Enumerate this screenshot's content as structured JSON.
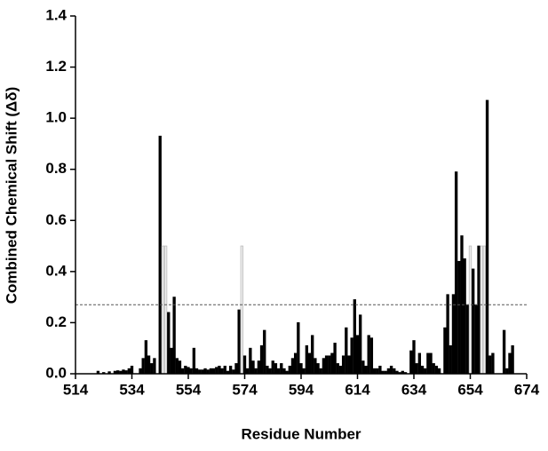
{
  "chart_data": {
    "type": "bar",
    "xlabel": "Residue Number",
    "ylabel": "Combined Chemical Shift (Δδ)",
    "x": [
      522,
      524,
      526,
      528,
      529,
      530,
      531,
      532,
      533,
      534,
      537,
      538,
      539,
      540,
      541,
      542,
      544,
      545,
      546,
      547,
      548,
      549,
      550,
      551,
      552,
      553,
      554,
      555,
      556,
      557,
      558,
      559,
      560,
      561,
      562,
      563,
      564,
      565,
      566,
      567,
      568,
      569,
      570,
      571,
      572,
      573,
      574,
      575,
      576,
      577,
      578,
      579,
      580,
      581,
      582,
      583,
      584,
      585,
      586,
      587,
      588,
      589,
      590,
      591,
      592,
      593,
      594,
      595,
      596,
      597,
      598,
      599,
      600,
      601,
      602,
      603,
      604,
      605,
      606,
      607,
      608,
      609,
      610,
      611,
      612,
      613,
      614,
      615,
      616,
      617,
      618,
      619,
      620,
      621,
      622,
      623,
      624,
      625,
      626,
      627,
      628,
      629,
      630,
      631,
      633,
      634,
      635,
      636,
      637,
      638,
      639,
      640,
      641,
      642,
      643,
      645,
      646,
      647,
      648,
      649,
      650,
      651,
      652,
      653,
      654,
      655,
      656,
      657,
      658,
      659,
      660,
      661,
      662,
      666,
      667,
      668,
      669
    ],
    "values": [
      0.01,
      0.005,
      0.008,
      0.01,
      0.012,
      0.01,
      0.015,
      0.012,
      0.02,
      0.03,
      0.02,
      0.06,
      0.13,
      0.07,
      0.04,
      0.06,
      0.93,
      0.5,
      0.5,
      0.24,
      0.1,
      0.3,
      0.06,
      0.05,
      0.02,
      0.03,
      0.025,
      0.02,
      0.1,
      0.02,
      0.015,
      0.015,
      0.02,
      0.015,
      0.02,
      0.02,
      0.025,
      0.03,
      0.02,
      0.03,
      0.01,
      0.03,
      0.015,
      0.04,
      0.25,
      0.5,
      0.07,
      0.02,
      0.1,
      0.05,
      0.02,
      0.05,
      0.11,
      0.17,
      0.03,
      0.02,
      0.05,
      0.04,
      0.02,
      0.04,
      0.02,
      0.01,
      0.03,
      0.06,
      0.08,
      0.2,
      0.04,
      0.02,
      0.11,
      0.08,
      0.15,
      0.06,
      0.04,
      0.02,
      0.06,
      0.07,
      0.07,
      0.08,
      0.12,
      0.04,
      0.03,
      0.07,
      0.18,
      0.07,
      0.14,
      0.29,
      0.15,
      0.23,
      0.05,
      0.03,
      0.15,
      0.14,
      0.02,
      0.02,
      0.03,
      0.01,
      0.01,
      0.02,
      0.03,
      0.02,
      0.01,
      0.005,
      0.01,
      0.005,
      0.09,
      0.13,
      0.04,
      0.08,
      0.03,
      0.02,
      0.08,
      0.08,
      0.04,
      0.03,
      0.02,
      0.18,
      0.31,
      0.11,
      0.31,
      0.79,
      0.44,
      0.54,
      0.45,
      0.27,
      0.5,
      0.41,
      0.27,
      0.5,
      0.5,
      0.5,
      1.07,
      0.07,
      0.08,
      0.17,
      0.02,
      0.08,
      0.11
    ],
    "colors": [
      "#000",
      "#000",
      "#000",
      "#000",
      "#000",
      "#000",
      "#000",
      "#000",
      "#000",
      "#000",
      "#000",
      "#000",
      "#000",
      "#000",
      "#000",
      "#000",
      "#000",
      "#bbb",
      "#bbb",
      "#000",
      "#000",
      "#000",
      "#000",
      "#000",
      "#000",
      "#000",
      "#000",
      "#000",
      "#000",
      "#000",
      "#000",
      "#000",
      "#000",
      "#000",
      "#000",
      "#000",
      "#000",
      "#000",
      "#000",
      "#000",
      "#000",
      "#000",
      "#000",
      "#000",
      "#000",
      "#bbb",
      "#000",
      "#000",
      "#000",
      "#000",
      "#000",
      "#000",
      "#000",
      "#000",
      "#000",
      "#000",
      "#000",
      "#000",
      "#000",
      "#000",
      "#000",
      "#000",
      "#000",
      "#000",
      "#000",
      "#000",
      "#000",
      "#000",
      "#000",
      "#000",
      "#000",
      "#000",
      "#000",
      "#000",
      "#000",
      "#000",
      "#000",
      "#000",
      "#000",
      "#000",
      "#000",
      "#000",
      "#000",
      "#000",
      "#000",
      "#000",
      "#000",
      "#000",
      "#000",
      "#000",
      "#000",
      "#000",
      "#000",
      "#000",
      "#000",
      "#000",
      "#000",
      "#000",
      "#000",
      "#000",
      "#000",
      "#000",
      "#000",
      "#000",
      "#000",
      "#000",
      "#000",
      "#000",
      "#000",
      "#000",
      "#000",
      "#000",
      "#000",
      "#000",
      "#000",
      "#000",
      "#000",
      "#000",
      "#000",
      "#000",
      "#000",
      "#000",
      "#000",
      "#000",
      "#bbb",
      "#000",
      "#000",
      "#000",
      "#bbb",
      "#bbb",
      "#000",
      "#000",
      "#000",
      "#000",
      "#000",
      "#000",
      "#000"
    ],
    "threshold": 0.27,
    "xlim": [
      514,
      674
    ],
    "xticks": [
      514,
      534,
      554,
      574,
      594,
      614,
      634,
      654,
      674
    ],
    "ylim": [
      0,
      1.4
    ],
    "yticks": [
      {
        "value": 0,
        "label": "0.0"
      },
      {
        "value": 0.2,
        "label": "0.2"
      },
      {
        "value": 0.4,
        "label": "0.4"
      },
      {
        "value": 0.6,
        "label": "0.6"
      },
      {
        "value": 0.8,
        "label": "0.8"
      },
      {
        "value": 1,
        "label": "1.0"
      },
      {
        "value": 1.2,
        "label": "1.2"
      },
      {
        "value": 1.4,
        "label": "1.4"
      }
    ]
  }
}
